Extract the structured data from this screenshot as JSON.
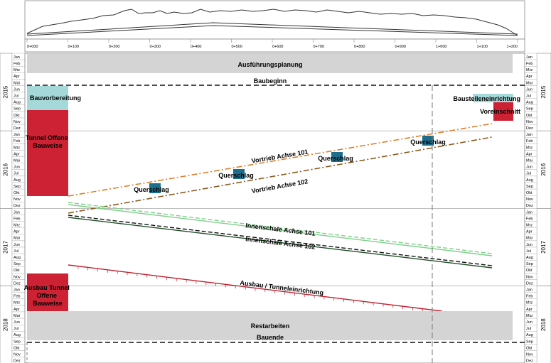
{
  "profile_chart": {
    "note": ""
  },
  "chainage_labels": [
    "0+000",
    "0+100",
    "0+200",
    "0+300",
    "0+400",
    "0+500",
    "0+600",
    "0+700",
    "0+800",
    "0+900",
    "1+000",
    "1+100",
    "1+200"
  ],
  "months": [
    "Jan",
    "Feb",
    "Mrz",
    "Apr",
    "Mai",
    "Jun",
    "Jul",
    "Aug",
    "Sep",
    "Okt",
    "Nov",
    "Dez"
  ],
  "years": [
    "2015",
    "2016",
    "2017",
    "2018"
  ],
  "activities": {
    "ausfuehrungsplanung": "Ausführungsplanung",
    "baubeginn": "Baubeginn",
    "bauvorbereitung": "Bauvorbereitung",
    "baustelleneinrichtung": "Baustelleneinrichtung",
    "voreinschnitt": "Voreinschnitt",
    "tunnel_offene_bauweise": "Tunnel Offene Bauweise",
    "vortrieb_101": "Vortrieb Achse 101",
    "vortrieb_102": "Vortrieb Achse 102",
    "querschlag": "Querschlag",
    "innenschale_101": "Innenschale Achse 101",
    "innenschale_102": "Innenschale Achse 102",
    "ausbau_tunneleinrichtung": "Ausbau / Tunneleinrichtung",
    "ausbau_tunnel_offene_bauweise": "Ausbau Tunnel Offene Bauweise",
    "restarbeiten": "Restarbeiten",
    "bauende": "Bauende"
  },
  "colors": {
    "grey_block": "#d4d4d4",
    "cyan_block": "#a5d8d8",
    "red_block": "#cc2233",
    "querschlag": "#1d6e8c",
    "vortrieb_101": "#d9822b",
    "vortrieb_102": "#8a5a1e",
    "innenschale_101": "#7fcf8a",
    "innenschale_102": "#1e4d24",
    "ausbau_line": "#c21f2e"
  }
}
